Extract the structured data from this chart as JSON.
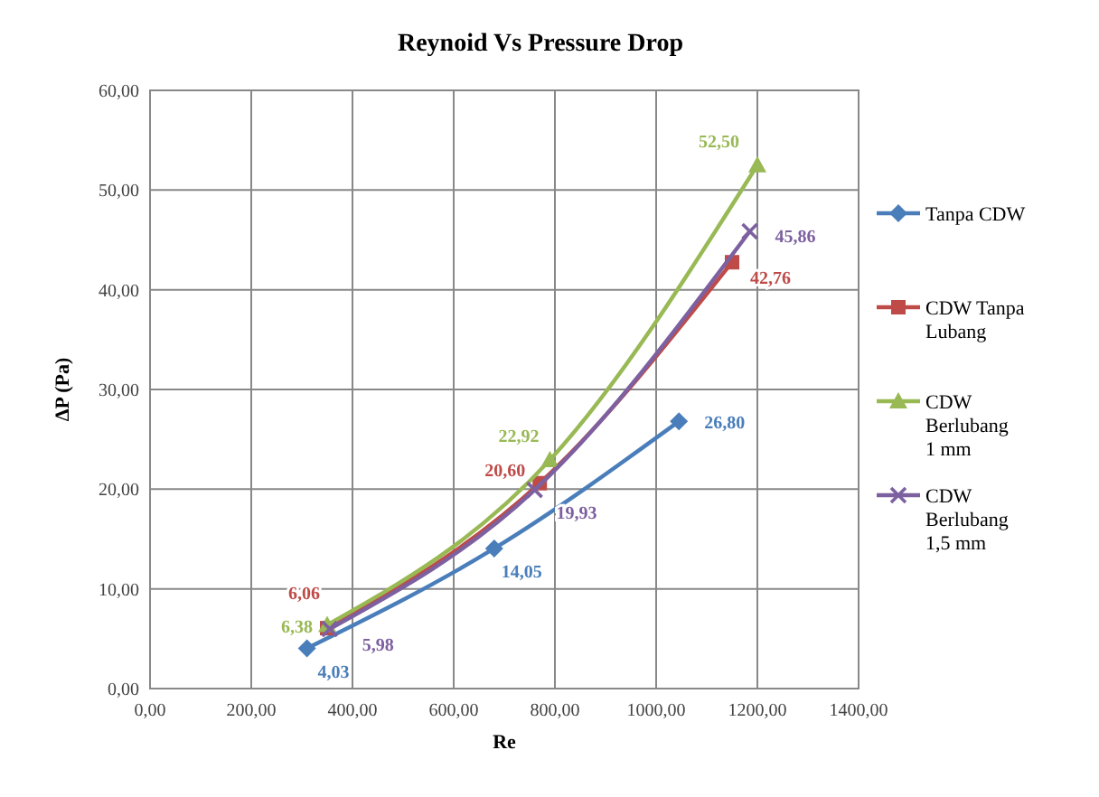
{
  "chart_data": {
    "type": "line",
    "title": "Reynoid Vs Pressure Drop",
    "xlabel": "Re",
    "ylabel": "ΔP (Pa)",
    "xlim": [
      0,
      1400
    ],
    "xticks": [
      {
        "value": 0,
        "label": "0,00"
      },
      {
        "value": 200,
        "label": "200,00"
      },
      {
        "value": 400,
        "label": "400,00"
      },
      {
        "value": 600,
        "label": "600,00"
      },
      {
        "value": 800,
        "label": "800,00"
      },
      {
        "value": 1000,
        "label": "1000,00"
      },
      {
        "value": 1200,
        "label": "1200,00"
      },
      {
        "value": 1400,
        "label": "1400,00"
      }
    ],
    "ylim": [
      0,
      60
    ],
    "yticks": [
      {
        "value": 0,
        "label": "0,00"
      },
      {
        "value": 10,
        "label": "10,00"
      },
      {
        "value": 20,
        "label": "20,00"
      },
      {
        "value": 30,
        "label": "30,00"
      },
      {
        "value": 40,
        "label": "40,00"
      },
      {
        "value": 50,
        "label": "50,00"
      },
      {
        "value": 60,
        "label": "60,00"
      }
    ],
    "grid": true,
    "legend": "right",
    "series": [
      {
        "name": "Tanpa CDW",
        "color": "#4a7ebb",
        "marker": "diamond",
        "x": [
          310,
          680,
          1045
        ],
        "values": [
          4.03,
          14.05,
          26.8
        ],
        "value_labels": [
          "4,03",
          "14,05",
          "26,80"
        ]
      },
      {
        "name": "CDW Tanpa Lubang",
        "color": "#be4b48",
        "marker": "square",
        "x": [
          350,
          770,
          1150
        ],
        "values": [
          6.06,
          20.6,
          42.76
        ],
        "value_labels": [
          "6,06",
          "20,60",
          "42,76"
        ]
      },
      {
        "name": "CDW Berlubang 1 mm",
        "color": "#98b954",
        "marker": "triangle",
        "x": [
          350,
          790,
          1200
        ],
        "values": [
          6.38,
          22.92,
          52.5
        ],
        "value_labels": [
          "6,38",
          "22,92",
          "52,50"
        ]
      },
      {
        "name": "CDW Berlubang 1,5 mm",
        "color": "#7d60a0",
        "marker": "cross",
        "x": [
          355,
          760,
          1185
        ],
        "values": [
          5.98,
          19.93,
          45.86
        ],
        "value_labels": [
          "5,98",
          "19,93",
          "45,86"
        ]
      }
    ]
  }
}
